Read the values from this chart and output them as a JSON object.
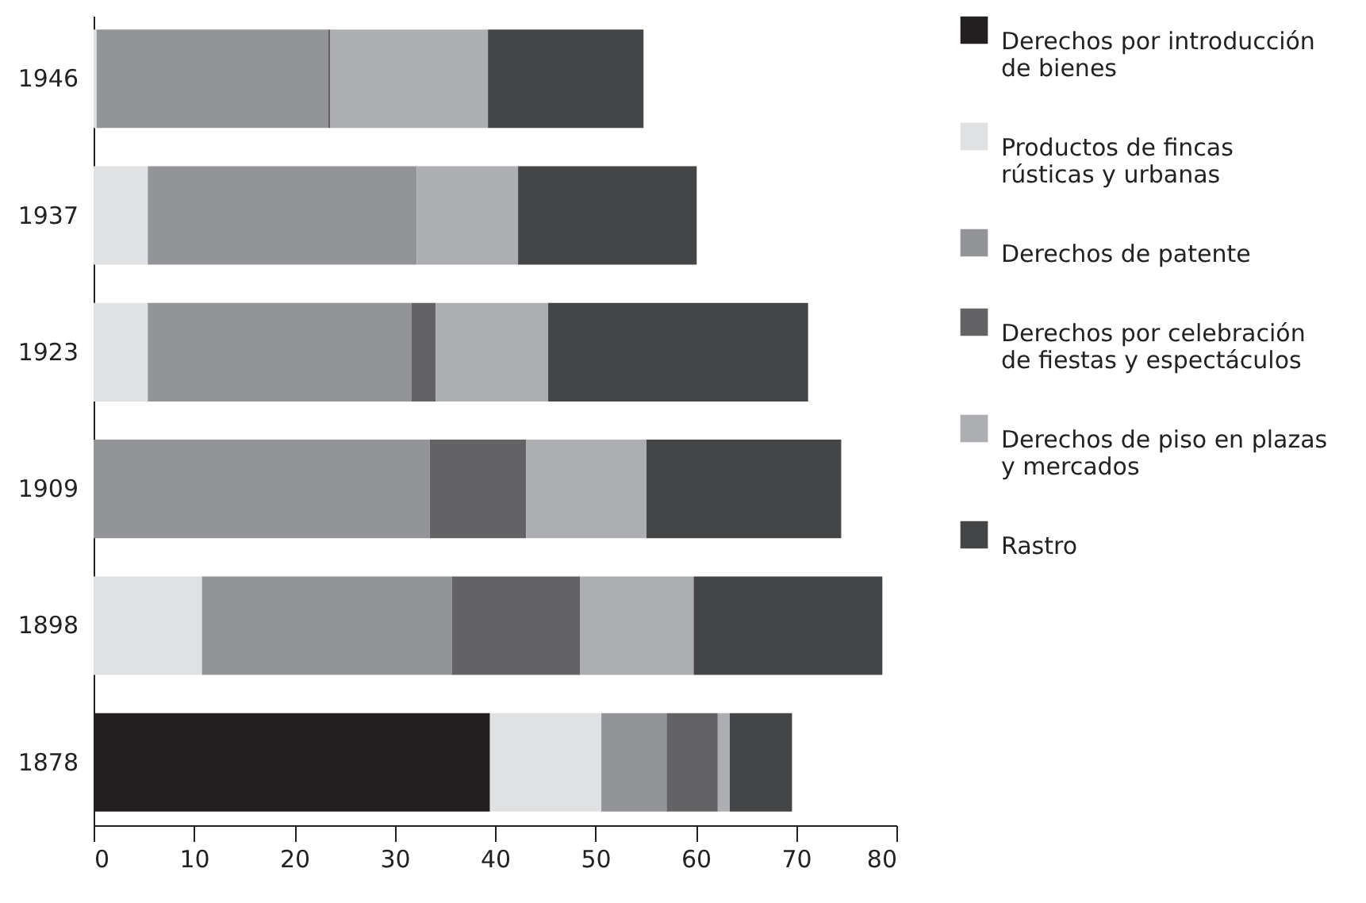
{
  "chart_data": {
    "type": "bar",
    "orientation": "horizontal",
    "stacked": true,
    "categories": [
      "1946",
      "1937",
      "1923",
      "1909",
      "1898",
      "1878"
    ],
    "series": [
      {
        "name": "Derechos por introducción de bienes",
        "color": "#231f20",
        "values": [
          0,
          0,
          0,
          0,
          0,
          39.5
        ]
      },
      {
        "name": "Productos de fincas rústicas y urbanas",
        "color": "#e0e1e3",
        "values": [
          0.3,
          5.4,
          5.4,
          0,
          10.8,
          11.1
        ]
      },
      {
        "name": "Derechos de patente",
        "color": "#939498",
        "values": [
          23.1,
          26.8,
          26.3,
          33.5,
          24.9,
          6.5
        ]
      },
      {
        "name": "Derechos por celebración de fiestas y espectáculos",
        "color": "#636366",
        "values": [
          0.2,
          0,
          2.4,
          9.6,
          12.8,
          5.1
        ]
      },
      {
        "name": "Derechos de piso en plazas y mercados",
        "color": "#adaeb1",
        "values": [
          15.7,
          10.1,
          11.2,
          12,
          11.3,
          1.2
        ]
      },
      {
        "name": "Rastro",
        "color": "#444547",
        "values": [
          15.5,
          17.8,
          25.9,
          19.4,
          18.8,
          6.2
        ]
      }
    ],
    "xlim": [
      0,
      80
    ],
    "xticks": [
      0,
      10,
      20,
      30,
      40,
      50,
      60,
      70,
      80
    ],
    "grid": false,
    "legend": "right"
  }
}
